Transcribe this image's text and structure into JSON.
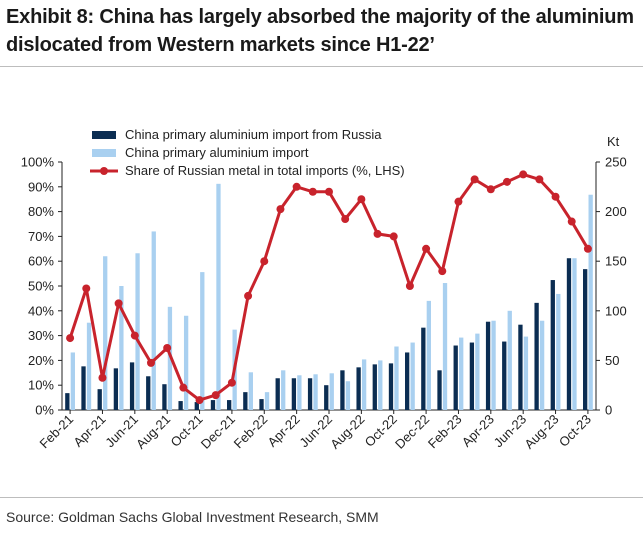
{
  "header": {
    "title_line1": "Exhibit 8: China has largely absorbed the majority of the aluminium",
    "title_line2": "dislocated from Western markets since H1-22’"
  },
  "footer": {
    "source": "Source: Goldman Sachs Global Investment Research, SMM"
  },
  "colors": {
    "russia_bar": "#0b2d52",
    "total_bar": "#a9d0f0",
    "share_line": "#c8232c"
  },
  "chart_data": {
    "type": "bar",
    "categories": [
      "Feb-21",
      "Mar-21",
      "Apr-21",
      "May-21",
      "Jun-21",
      "Jul-21",
      "Aug-21",
      "Sep-21",
      "Oct-21",
      "Nov-21",
      "Dec-21",
      "Jan-22",
      "Feb-22",
      "Mar-22",
      "Apr-22",
      "May-22",
      "Jun-22",
      "Jul-22",
      "Aug-22",
      "Sep-22",
      "Oct-22",
      "Nov-22",
      "Dec-22",
      "Jan-23",
      "Feb-23",
      "Mar-23",
      "Apr-23",
      "May-23",
      "Jun-23",
      "Jul-23",
      "Aug-23",
      "Sep-23",
      "Oct-23"
    ],
    "tick_labels": [
      "Feb-21",
      "Apr-21",
      "Jun-21",
      "Aug-21",
      "Oct-21",
      "Dec-21",
      "Feb-22",
      "Apr-22",
      "Jun-22",
      "Aug-22",
      "Oct-22",
      "Dec-22",
      "Feb-23",
      "Apr-23",
      "Jun-23",
      "Aug-23",
      "Oct-23"
    ],
    "series": [
      {
        "name": "China primary aluminium import from Russia",
        "kind": "bar",
        "axis": "right",
        "values": [
          17,
          44,
          21,
          42,
          48,
          34,
          26,
          9,
          8,
          10,
          10,
          18,
          11,
          32,
          32,
          32,
          25,
          40,
          43,
          46,
          47,
          58,
          83,
          40,
          65,
          68,
          89,
          69,
          86,
          108,
          131,
          153,
          142
        ]
      },
      {
        "name": "China primary aluminium import",
        "kind": "bar",
        "axis": "right",
        "values": [
          58,
          88,
          155,
          125,
          158,
          180,
          104,
          95,
          139,
          228,
          81,
          38,
          18,
          40,
          35,
          36,
          37,
          29,
          51,
          50,
          64,
          68,
          110,
          128,
          73,
          77,
          90,
          100,
          74,
          90,
          117,
          153,
          217
        ]
      },
      {
        "name": "Share of Russian metal in total imports (%, LHS)",
        "kind": "line",
        "axis": "left",
        "values": [
          29,
          49,
          13,
          43,
          30,
          19,
          25,
          9,
          4,
          6,
          11,
          46,
          60,
          81,
          90,
          88,
          88,
          77,
          85,
          71,
          70,
          50,
          65,
          56,
          84,
          93,
          89,
          92,
          95,
          93,
          86,
          76,
          65
        ]
      }
    ],
    "y_left": {
      "ylim": [
        0,
        100
      ],
      "ticks": [
        "0%",
        "10%",
        "20%",
        "30%",
        "40%",
        "50%",
        "60%",
        "70%",
        "80%",
        "90%",
        "100%"
      ]
    },
    "y_right": {
      "ylim": [
        0,
        250
      ],
      "ticks": [
        "0",
        "50",
        "100",
        "150",
        "200",
        "250"
      ],
      "label": "Kt"
    },
    "legend_placement": "top-left",
    "grid": false
  }
}
